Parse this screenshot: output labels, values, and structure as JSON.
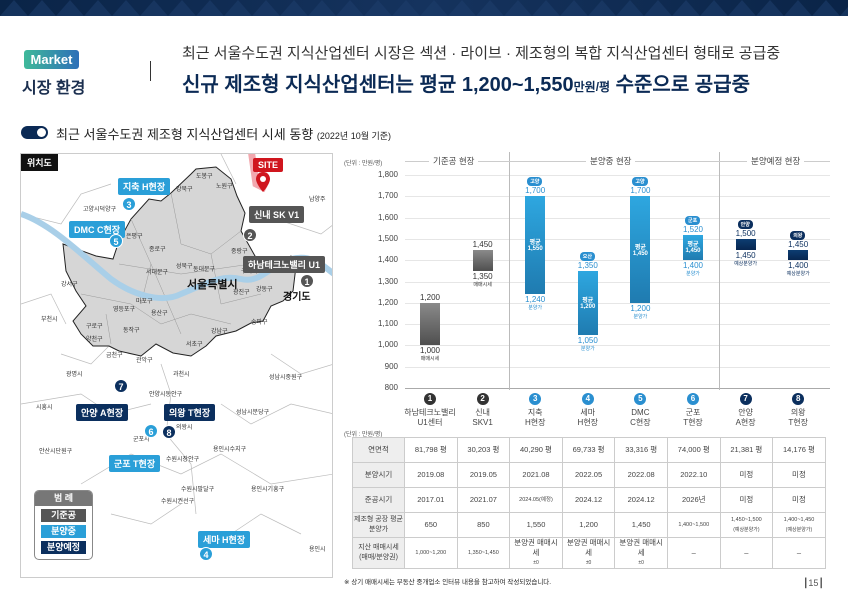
{
  "header": {
    "badge": "Market",
    "section": "시장 환경",
    "subtitle": "최근 서울수도권 지식산업센터 시장은 섹션 · 라이브 · 제조형의 복합 지식산업센터 형태로 공급중",
    "title_pre": "신규 제조형 지식산업센터는 평균 1,200~1,550",
    "title_unit": "만원/평",
    "title_post": " 수준으로 공급중"
  },
  "section": {
    "title": "최근 서울수도권 제조형 지식산업센터 시세 동향",
    "note": "(2022년 10월 기준)"
  },
  "map": {
    "title": "위치도",
    "seoul": "서울특별시",
    "gyeonggi": "경기도",
    "site": "SITE",
    "districts": [
      "도봉구",
      "노원구",
      "강북구",
      "은평구",
      "성북구",
      "종로구",
      "중랑구",
      "서대문구",
      "동대문구",
      "마포구",
      "강서구",
      "광진구",
      "강동구",
      "양천구",
      "영등포구",
      "용산구",
      "구로구",
      "동작구",
      "송파구",
      "강남구",
      "금천구",
      "관악구",
      "서초구",
      "고양시덕양구",
      "구리시",
      "부천시",
      "광명시",
      "과천시",
      "시흥시",
      "안양시동안구",
      "의왕시",
      "군포시",
      "안산시단원구",
      "성남시분당구",
      "용인시수지구",
      "수원시장안구",
      "수원시팔달구",
      "수원시권선구",
      "용인시기흥구",
      "성남시중원구",
      "남양주",
      "용인시"
    ],
    "markers": [
      {
        "num": "1",
        "label": "하남테크노밸리 U1",
        "status": "기준공"
      },
      {
        "num": "2",
        "label": "신내 SK V1",
        "status": "기준공"
      },
      {
        "num": "3",
        "label": "지축 H현장",
        "status": "분양중"
      },
      {
        "num": "4",
        "label": "세마 H현장",
        "status": "분양중"
      },
      {
        "num": "5",
        "label": "DMC C현장",
        "status": "분양중"
      },
      {
        "num": "6",
        "label": "군포 T현장",
        "status": "분양중"
      },
      {
        "num": "7",
        "label": "안양 A현장",
        "status": "분양예정"
      },
      {
        "num": "8",
        "label": "의왕 T현장",
        "status": "분양예정"
      }
    ],
    "legend": {
      "title": "범 례",
      "items": [
        "기준공",
        "분양중",
        "분양예정"
      ]
    }
  },
  "colors": {
    "existing": "#5a5a5a",
    "selling": "#2a9fd8",
    "planned": "#0b2f5e",
    "navy": "#0b2a55"
  },
  "chart_data": {
    "type": "range-bar",
    "unit_label": "(단위 : 만원/평)",
    "ylim": [
      800,
      1800
    ],
    "yticks": [
      800,
      900,
      1000,
      1100,
      1200,
      1300,
      1400,
      1500,
      1600,
      1700,
      1800
    ],
    "groups": [
      {
        "name": "기준공 현장",
        "members": [
          1,
          2
        ]
      },
      {
        "name": "분양중 현장",
        "members": [
          3,
          4,
          5,
          6
        ]
      },
      {
        "name": "분양예정 현장",
        "members": [
          7,
          8
        ]
      }
    ],
    "series": [
      {
        "num": "1",
        "name1": "하남테크노밸리",
        "name2": "U1센터",
        "status": "existing",
        "low": 1000,
        "high": 1200,
        "low_label": "1,000",
        "high_label": "1,200",
        "sub": "매매시세",
        "tag": "",
        "avg": ""
      },
      {
        "num": "2",
        "name1": "신내",
        "name2": "SKV1",
        "status": "existing",
        "low": 1350,
        "high": 1450,
        "low_label": "1,350",
        "high_label": "1,450",
        "sub": "매매시세",
        "tag": "",
        "avg": ""
      },
      {
        "num": "3",
        "name1": "지축",
        "name2": "H현장",
        "status": "selling",
        "low": 1240,
        "high": 1700,
        "low_label": "1,240",
        "high_label": "1,700",
        "sub": "분양가",
        "tag": "고양",
        "avg": "평균 1,550"
      },
      {
        "num": "4",
        "name1": "세마",
        "name2": "H현장",
        "status": "selling",
        "low": 1050,
        "high": 1350,
        "low_label": "1,050",
        "high_label": "1,350",
        "sub": "분양가",
        "tag": "오산",
        "avg": "평균 1,200"
      },
      {
        "num": "5",
        "name1": "DMC",
        "name2": "C현장",
        "status": "selling",
        "low": 1200,
        "high": 1700,
        "low_label": "1,200",
        "high_label": "1,700",
        "sub": "분양가",
        "tag": "고양",
        "avg": "평균 1,450"
      },
      {
        "num": "6",
        "name1": "군포",
        "name2": "T현장",
        "status": "selling",
        "low": 1400,
        "high": 1520,
        "low_label": "1,400",
        "high_label": "1,520",
        "sub": "분양가",
        "tag": "군포",
        "avg": "평균 1,450"
      },
      {
        "num": "7",
        "name1": "안양",
        "name2": "A현장",
        "status": "planned",
        "low": 1450,
        "high": 1500,
        "low_label": "1,450",
        "high_label": "1,500",
        "sub": "예상분양가",
        "tag": "안양",
        "avg": ""
      },
      {
        "num": "8",
        "name1": "의왕",
        "name2": "T현장",
        "status": "planned",
        "low": 1400,
        "high": 1450,
        "low_label": "1,400",
        "high_label": "1,450",
        "sub": "예상분양가",
        "tag": "의왕",
        "avg": ""
      }
    ]
  },
  "table": {
    "unit_label": "(단위 : 만원/평)",
    "rows": [
      {
        "label": "연면적",
        "values": [
          "81,798 평",
          "30,203 평",
          "40,290 평",
          "69,733 평",
          "33,316 평",
          "74,000 평",
          "21,381 평",
          "14,176 평"
        ]
      },
      {
        "label": "분양시기",
        "values": [
          "2019.08",
          "2019.05",
          "2021.08",
          "2022.05",
          "2022.08",
          "2022.10",
          "미정",
          "미정"
        ]
      },
      {
        "label": "준공시기",
        "values": [
          "2017.01",
          "2021.07",
          "2024.05(예정)",
          "2024.12",
          "2024.12",
          "2026년",
          "미정",
          "미정"
        ]
      },
      {
        "label": "제조형 공장 평균 분양가",
        "values": [
          "650",
          "850",
          "1,550",
          "1,200",
          "1,450",
          "1,400~1,500",
          "1,450~1,500",
          "1,400~1,450"
        ],
        "subs": [
          "",
          "",
          "",
          "",
          "",
          "",
          "(예상분양가)",
          "(예상분양가)"
        ]
      },
      {
        "label": "지산 매매시세 (매매/분양권)",
        "values": [
          "1,000~1,200",
          "1,350~1,450",
          "분양권 매매시세",
          "분양권 매매시세",
          "분양권 매매시세",
          "–",
          "–",
          "–"
        ],
        "subs": [
          "",
          "",
          "±0",
          "±0",
          "±0",
          "",
          "",
          ""
        ]
      }
    ]
  },
  "footnote": "※ 상기 매매시세는 부동산 중개업소 인터뷰 내용을 참고하여 작성되었습니다.",
  "page_number": "15"
}
